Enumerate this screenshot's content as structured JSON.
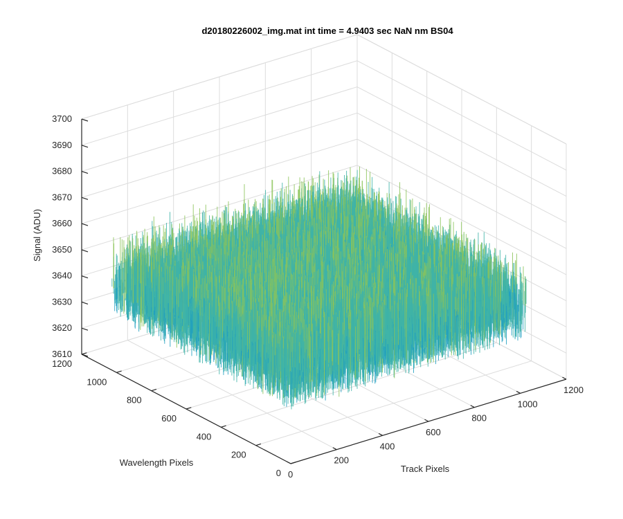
{
  "chart_data": {
    "type": "surface",
    "title": "d20180226002_img.mat int time = 4.9403 sec  NaN nm BS04",
    "xlabel": "Track Pixels",
    "ylabel": "Wavelength Pixels",
    "zlabel": "Signal (ADU)",
    "xlim": [
      0,
      1200
    ],
    "ylim": [
      0,
      1200
    ],
    "zlim": [
      3610,
      3700
    ],
    "x_ticks": [
      0,
      200,
      400,
      600,
      800,
      1000,
      1200
    ],
    "y_ticks": [
      0,
      200,
      400,
      600,
      800,
      1000,
      1200
    ],
    "z_ticks": [
      3610,
      3620,
      3630,
      3640,
      3650,
      3660,
      3670,
      3680,
      3690,
      3700
    ],
    "x_tick_labels": [
      "0",
      "200",
      "400",
      "600",
      "800",
      "1000",
      "1200"
    ],
    "y_tick_labels": [
      "0",
      "200",
      "400",
      "600",
      "800",
      "1000",
      "1200"
    ],
    "z_tick_labels": [
      "3610",
      "3620",
      "3630",
      "3640",
      "3650",
      "3660",
      "3670",
      "3680",
      "3690",
      "3700"
    ],
    "data_extent": {
      "x": [
        0,
        1024
      ],
      "y": [
        0,
        1024
      ]
    },
    "signal_mean": 3650,
    "signal_spread": [
      3615,
      3690
    ],
    "colormap": [
      "#0072bd",
      "#1f9fc1",
      "#3fb4a8",
      "#8cc45a",
      "#e6c84a"
    ],
    "grid": true
  }
}
